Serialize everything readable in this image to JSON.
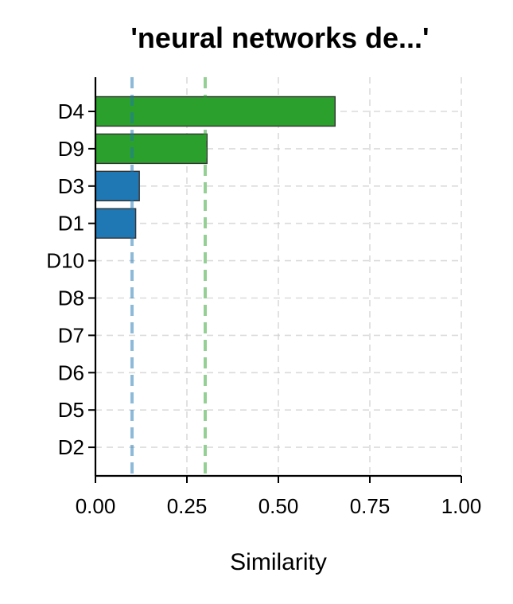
{
  "chart_data": {
    "type": "bar",
    "orientation": "horizontal",
    "title": "'neural networks de...'",
    "xlabel": "Similarity",
    "ylabel": "",
    "xlim": [
      0,
      1
    ],
    "xticks": [
      "0.00",
      "0.25",
      "0.50",
      "0.75",
      "1.00"
    ],
    "xtick_values": [
      0,
      0.25,
      0.5,
      0.75,
      1.0
    ],
    "categories": [
      "D4",
      "D9",
      "D3",
      "D1",
      "D10",
      "D8",
      "D7",
      "D6",
      "D5",
      "D2"
    ],
    "values": [
      0.655,
      0.305,
      0.12,
      0.11,
      0,
      0,
      0,
      0,
      0,
      0
    ],
    "bar_colors": [
      "#2ca02c",
      "#2ca02c",
      "#1f77b4",
      "#1f77b4",
      "#1f77b4",
      "#1f77b4",
      "#1f77b4",
      "#1f77b4",
      "#1f77b4",
      "#1f77b4"
    ],
    "reference_lines": [
      {
        "x": 0.1,
        "color": "#1f77b4"
      },
      {
        "x": 0.3,
        "color": "#2ca02c"
      }
    ],
    "grid": true,
    "legend": "none"
  }
}
